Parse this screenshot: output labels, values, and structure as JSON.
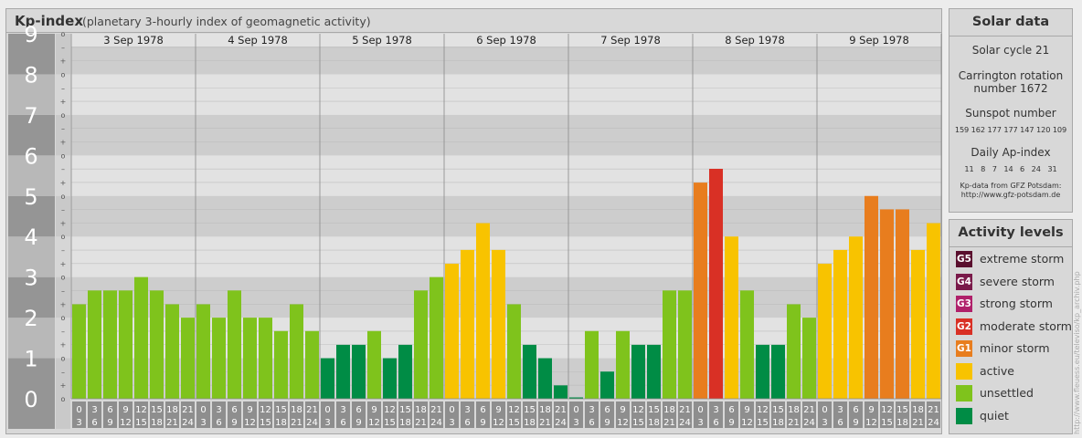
{
  "header": {
    "title": "Kp-index",
    "subtitle": "(planetary 3-hourly index of geomagnetic activity)"
  },
  "chart_data": {
    "type": "bar",
    "title": "Kp-index",
    "subtitle": "(planetary 3-hourly index of geomagnetic activity)",
    "ylim": [
      0,
      9
    ],
    "y_major_ticks": [
      "0",
      "1",
      "2",
      "3",
      "4",
      "5",
      "6",
      "7",
      "8",
      "9"
    ],
    "y_minor_ticks": [
      "o",
      "+",
      "-"
    ],
    "days": [
      "3 Sep 1978",
      "4 Sep 1978",
      "5 Sep 1978",
      "6 Sep 1978",
      "7 Sep 1978",
      "8 Sep 1978",
      "9 Sep 1978"
    ],
    "interval_start": [
      "0",
      "3",
      "6",
      "9",
      "12",
      "15",
      "18",
      "21"
    ],
    "interval_end": [
      "3",
      "6",
      "9",
      "12",
      "15",
      "18",
      "21",
      "24"
    ],
    "values": [
      [
        2.33,
        2.67,
        2.67,
        2.67,
        3.0,
        2.67,
        2.33,
        2.0
      ],
      [
        2.33,
        2.0,
        2.67,
        2.0,
        2.0,
        1.67,
        2.33,
        1.67
      ],
      [
        1.0,
        1.33,
        1.33,
        1.67,
        1.0,
        1.33,
        2.67,
        3.0
      ],
      [
        3.33,
        3.67,
        4.33,
        3.67,
        2.33,
        1.33,
        1.0,
        0.33
      ],
      [
        0.0,
        1.67,
        0.67,
        1.67,
        1.33,
        1.33,
        2.67,
        2.67
      ],
      [
        5.33,
        5.67,
        4.0,
        2.67,
        1.33,
        1.33,
        2.33,
        2.0
      ],
      [
        3.33,
        3.67,
        4.0,
        5.0,
        4.67,
        4.67,
        3.67,
        4.33
      ]
    ],
    "colors": {
      "quiet": "#008c45",
      "unsettled": "#7fc31c",
      "active": "#f8c300",
      "minor": "#e87d1e",
      "moderate": "#d93025",
      "plot_light": "#e2e2e2",
      "plot_dark": "#cdcdcd",
      "axis_dark": "#959595",
      "axis_light": "#b8b8b8"
    },
    "grid": true
  },
  "solar": {
    "header": "Solar data",
    "cycle": "Solar cycle 21",
    "carrington_line1": "Carrington rotation",
    "carrington_line2": "number 1672",
    "sunspot_label": "Sunspot number",
    "sunspot_values": "159 162 177 177 147 120 109",
    "ap_label": "Daily Ap-index",
    "ap_values": "11   8   7   14   6   24   31",
    "source_line1": "Kp-data from GFZ Potsdam:",
    "source_line2": "http://www.gfz-potsdam.de"
  },
  "levels": {
    "header": "Activity levels",
    "items": [
      {
        "code": "G5",
        "label": "extreme storm",
        "color": "#5a0f2e"
      },
      {
        "code": "G4",
        "label": "severe storm",
        "color": "#7a1a4a"
      },
      {
        "code": "G3",
        "label": "strong storm",
        "color": "#b0206a"
      },
      {
        "code": "G2",
        "label": "moderate storm",
        "color": "#d93025"
      },
      {
        "code": "G1",
        "label": "minor storm",
        "color": "#e87d1e"
      },
      {
        "code": "",
        "label": "active",
        "color": "#f8c300"
      },
      {
        "code": "",
        "label": "unsettled",
        "color": "#7fc31c"
      },
      {
        "code": "",
        "label": "quiet",
        "color": "#008c45"
      }
    ]
  },
  "watermark": "http://www.fleuess.eu/televiso/kp_archiv.php"
}
